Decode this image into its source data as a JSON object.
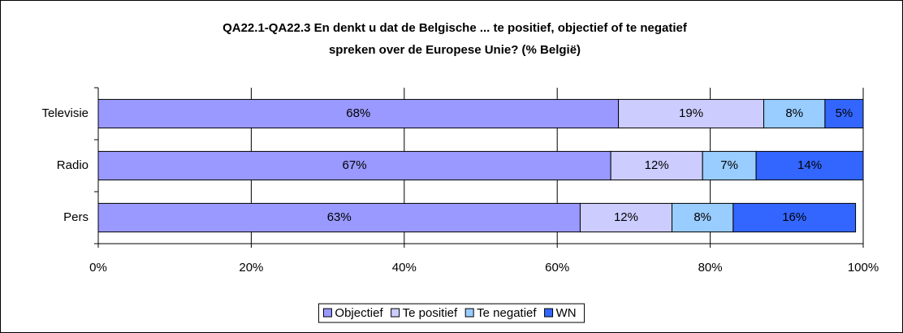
{
  "chart_data": {
    "type": "stacked-bar-horizontal",
    "title": [
      "QA22.1-QA22.3 En denkt u dat de Belgische ... te positief, objectief of te negatief",
      "spreken over de Europese Unie? (% België)"
    ],
    "categories": [
      "Televisie",
      "Radio",
      "Pers"
    ],
    "series": [
      {
        "name": "Objectief",
        "color": "#9999ff",
        "values": [
          68,
          67,
          63
        ],
        "value_labels": [
          "68%",
          "67%",
          "63%"
        ]
      },
      {
        "name": "Te positief",
        "color": "#ccccff",
        "values": [
          19,
          12,
          12
        ],
        "value_labels": [
          "19%",
          "12%",
          "12%"
        ]
      },
      {
        "name": "Te negatief",
        "color": "#99ccff",
        "values": [
          8,
          7,
          8
        ],
        "value_labels": [
          "8%",
          "7%",
          "8%"
        ]
      },
      {
        "name": "WN",
        "color": "#3366ff",
        "values": [
          5,
          14,
          16
        ],
        "value_labels": [
          "5%",
          "14%",
          "16%"
        ]
      }
    ],
    "xlim": [
      0,
      100
    ],
    "xticks": [
      {
        "value": 0,
        "label": "0%"
      },
      {
        "value": 20,
        "label": "20%"
      },
      {
        "value": 40,
        "label": "40%"
      },
      {
        "value": 60,
        "label": "60%"
      },
      {
        "value": 80,
        "label": "80%"
      },
      {
        "value": 100,
        "label": "100%"
      }
    ],
    "grid": true,
    "legend": "bottom"
  }
}
